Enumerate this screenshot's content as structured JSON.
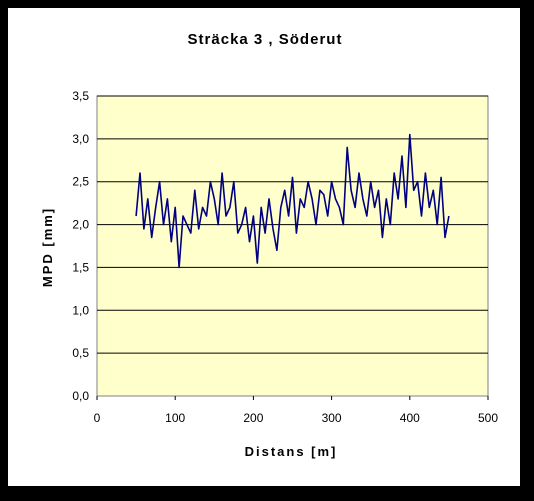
{
  "chart_data": {
    "type": "line",
    "title": "Sträcka 3 , Söderut",
    "xlabel": "Distans [m]",
    "ylabel": "MPD [mm]",
    "xlim": [
      0,
      500
    ],
    "ylim": [
      0,
      3.5
    ],
    "xticks": [
      0,
      100,
      200,
      300,
      400,
      500
    ],
    "yticks": [
      "0,0",
      "0,5",
      "1,0",
      "1,5",
      "2,0",
      "2,5",
      "3,0",
      "3,5"
    ],
    "grid": "horizontal",
    "plot_background": "#FFFFCC",
    "series": [
      {
        "color": "#000080",
        "x": [
          50,
          55,
          60,
          65,
          70,
          75,
          80,
          85,
          90,
          95,
          100,
          105,
          110,
          115,
          120,
          125,
          130,
          135,
          140,
          145,
          150,
          155,
          160,
          165,
          170,
          175,
          180,
          185,
          190,
          195,
          200,
          205,
          210,
          215,
          220,
          225,
          230,
          235,
          240,
          245,
          250,
          255,
          260,
          265,
          270,
          275,
          280,
          285,
          290,
          295,
          300,
          305,
          310,
          315,
          320,
          325,
          330,
          335,
          340,
          345,
          350,
          355,
          360,
          365,
          370,
          375,
          380,
          385,
          390,
          395,
          400,
          405,
          410,
          415,
          420,
          425,
          430,
          435,
          440,
          445,
          450
        ],
        "y": [
          2.1,
          2.6,
          1.95,
          2.3,
          1.85,
          2.2,
          2.5,
          2.0,
          2.3,
          1.8,
          2.2,
          1.5,
          2.1,
          2.0,
          1.9,
          2.4,
          1.95,
          2.2,
          2.1,
          2.5,
          2.3,
          2.0,
          2.6,
          2.1,
          2.2,
          2.5,
          1.9,
          2.0,
          2.2,
          1.8,
          2.1,
          1.55,
          2.2,
          1.9,
          2.3,
          1.95,
          1.7,
          2.2,
          2.4,
          2.1,
          2.55,
          1.9,
          2.3,
          2.2,
          2.5,
          2.3,
          2.0,
          2.4,
          2.35,
          2.1,
          2.5,
          2.3,
          2.2,
          2.0,
          2.9,
          2.4,
          2.2,
          2.6,
          2.3,
          2.1,
          2.5,
          2.2,
          2.4,
          1.85,
          2.3,
          2.0,
          2.6,
          2.3,
          2.8,
          2.2,
          3.05,
          2.4,
          2.5,
          2.1,
          2.6,
          2.2,
          2.4,
          2.0,
          2.55,
          1.85,
          2.1
        ]
      }
    ]
  }
}
